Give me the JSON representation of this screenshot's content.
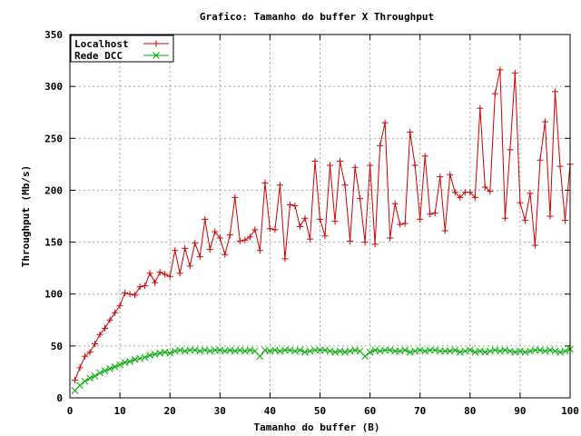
{
  "chart_data": {
    "type": "line",
    "title": "Grafico: Tamanho do buffer X Throughput",
    "xlabel": "Tamanho do buffer (B)",
    "ylabel": "Throughput (Mb/s)",
    "xlim": [
      0,
      100
    ],
    "ylim": [
      0,
      350
    ],
    "xticks": [
      0,
      10,
      20,
      30,
      40,
      50,
      60,
      70,
      80,
      90,
      100
    ],
    "yticks": [
      0,
      50,
      100,
      150,
      200,
      250,
      300,
      350
    ],
    "grid": true,
    "legend_position": "top-left",
    "series": [
      {
        "name": "Localhost",
        "color": "#cc0000",
        "marker": "plus",
        "x": [
          1,
          2,
          3,
          4,
          5,
          6,
          7,
          8,
          9,
          10,
          11,
          12,
          13,
          14,
          15,
          16,
          17,
          18,
          19,
          20,
          21,
          22,
          23,
          24,
          25,
          26,
          27,
          28,
          29,
          30,
          31,
          32,
          33,
          34,
          35,
          36,
          37,
          38,
          39,
          40,
          41,
          42,
          43,
          44,
          45,
          46,
          47,
          48,
          49,
          50,
          51,
          52,
          53,
          54,
          55,
          56,
          57,
          58,
          59,
          60,
          61,
          62,
          63,
          64,
          65,
          66,
          67,
          68,
          69,
          70,
          71,
          72,
          73,
          74,
          75,
          76,
          77,
          78,
          79,
          80,
          81,
          82,
          83,
          84,
          85,
          86,
          87,
          88,
          89,
          90,
          91,
          92,
          93,
          94,
          95,
          96,
          97,
          98,
          99,
          100
        ],
        "values": [
          17,
          29,
          40,
          44,
          52,
          61,
          67,
          75,
          82,
          89,
          101,
          100,
          99,
          107,
          108,
          120,
          111,
          121,
          119,
          117,
          142,
          120,
          144,
          127,
          149,
          136,
          172,
          143,
          160,
          154,
          138,
          157,
          193,
          151,
          152,
          155,
          162,
          142,
          207,
          163,
          162,
          205,
          134,
          186,
          185,
          165,
          173,
          153,
          228,
          172,
          156,
          224,
          170,
          228,
          205,
          151,
          222,
          192,
          150,
          224,
          148,
          243,
          265,
          154,
          187,
          167,
          168,
          256,
          224,
          172,
          233,
          177,
          178,
          213,
          161,
          215,
          198,
          193,
          198,
          198,
          193,
          279,
          203,
          199,
          293,
          316,
          173,
          239,
          313,
          188,
          171,
          197,
          147,
          229,
          266,
          175,
          295,
          223,
          171,
          225
        ]
      },
      {
        "name": "Rede DCC",
        "color": "#00aa00",
        "marker": "cross",
        "x": [
          1,
          2,
          3,
          4,
          5,
          6,
          7,
          8,
          9,
          10,
          11,
          12,
          13,
          14,
          15,
          16,
          17,
          18,
          19,
          20,
          21,
          22,
          23,
          24,
          25,
          26,
          27,
          28,
          29,
          30,
          31,
          32,
          33,
          34,
          35,
          36,
          37,
          38,
          39,
          40,
          41,
          42,
          43,
          44,
          45,
          46,
          47,
          48,
          49,
          50,
          51,
          52,
          53,
          54,
          55,
          56,
          57,
          58,
          59,
          60,
          61,
          62,
          63,
          64,
          65,
          66,
          67,
          68,
          69,
          70,
          71,
          72,
          73,
          74,
          75,
          76,
          77,
          78,
          79,
          80,
          81,
          82,
          83,
          84,
          85,
          86,
          87,
          88,
          89,
          90,
          91,
          92,
          93,
          94,
          95,
          96,
          97,
          98,
          99,
          100
        ],
        "values": [
          7,
          12,
          16,
          19,
          21,
          24,
          26,
          28,
          30,
          32,
          34,
          35,
          37,
          38,
          39,
          41,
          42,
          43,
          44,
          43,
          45,
          46,
          45,
          46,
          46,
          45,
          46,
          45,
          46,
          46,
          45,
          46,
          45,
          46,
          45,
          46,
          45,
          40,
          46,
          45,
          46,
          45,
          46,
          46,
          45,
          46,
          44,
          45,
          46,
          46,
          46,
          45,
          44,
          45,
          44,
          45,
          46,
          45,
          40,
          44,
          46,
          45,
          46,
          46,
          45,
          45,
          46,
          44,
          45,
          46,
          45,
          46,
          46,
          45,
          45,
          45,
          46,
          44,
          45,
          46,
          44,
          45,
          44,
          45,
          46,
          45,
          46,
          45,
          44,
          45,
          44,
          45,
          46,
          46,
          45,
          46,
          45,
          44,
          45,
          47
        ]
      }
    ]
  }
}
